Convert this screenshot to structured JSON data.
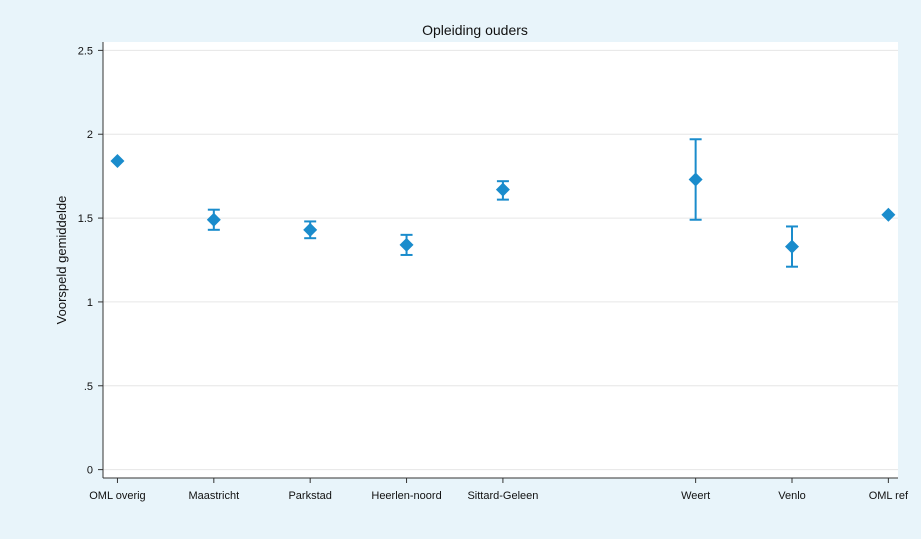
{
  "chart_data": {
    "type": "scatter",
    "subtype": "point-with-error-bars",
    "title": "Opleiding ouders",
    "xlabel": "",
    "ylabel": "Voorspeld gemiddelde",
    "ylim": [
      -0.05,
      2.55
    ],
    "yticks": [
      {
        "value": 0,
        "label": "0"
      },
      {
        "value": 0.5,
        "label": ".5"
      },
      {
        "value": 1,
        "label": "1"
      },
      {
        "value": 1.5,
        "label": "1.5"
      },
      {
        "value": 2,
        "label": "2"
      },
      {
        "value": 2.5,
        "label": "2.5"
      }
    ],
    "categories": [
      {
        "label": "OML overig",
        "pos": 0
      },
      {
        "label": "Maastricht",
        "pos": 1
      },
      {
        "label": "Parkstad",
        "pos": 2
      },
      {
        "label": "Heerlen-noord",
        "pos": 3
      },
      {
        "label": "Sittard-Geleen",
        "pos": 4
      },
      {
        "label": "Weert",
        "pos": 6
      },
      {
        "label": "Venlo",
        "pos": 7
      },
      {
        "label": "OML ref",
        "pos": 8
      }
    ],
    "xlim": [
      -0.15,
      8.1
    ],
    "points": [
      {
        "category": "OML overig",
        "estimate": 1.84,
        "lower": null,
        "upper": null
      },
      {
        "category": "Maastricht",
        "estimate": 1.49,
        "lower": 1.43,
        "upper": 1.55
      },
      {
        "category": "Parkstad",
        "estimate": 1.43,
        "lower": 1.38,
        "upper": 1.48
      },
      {
        "category": "Heerlen-noord",
        "estimate": 1.34,
        "lower": 1.28,
        "upper": 1.4
      },
      {
        "category": "Sittard-Geleen",
        "estimate": 1.67,
        "lower": 1.61,
        "upper": 1.72
      },
      {
        "category": "Weert",
        "estimate": 1.73,
        "lower": 1.49,
        "upper": 1.97
      },
      {
        "category": "Venlo",
        "estimate": 1.33,
        "lower": 1.21,
        "upper": 1.45
      },
      {
        "category": "OML ref",
        "estimate": 1.52,
        "lower": null,
        "upper": null
      }
    ],
    "grid": "horizontal",
    "legend": "none"
  },
  "colors": {
    "outer_background": "#e8f4fa",
    "plot_background": "#ffffff",
    "marker": "#1a8ccc",
    "gridline": "#e6e6e6",
    "axis": "#333333"
  }
}
